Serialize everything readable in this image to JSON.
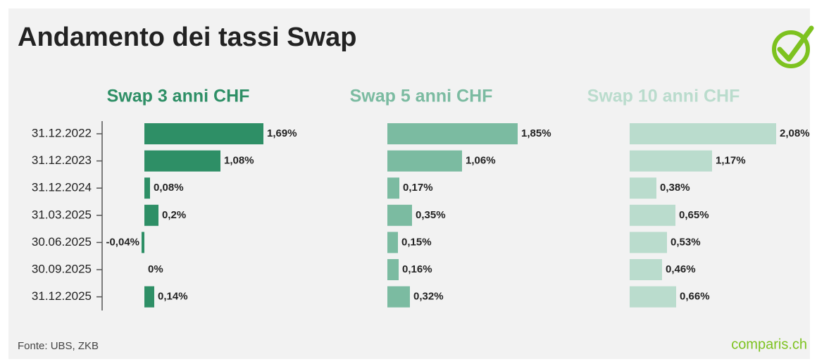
{
  "chart_data": {
    "type": "bar",
    "orientation": "horizontal",
    "title": "Andamento dei tassi Swap",
    "categories": [
      "31.12.2022",
      "31.12.2023",
      "31.12.2024",
      "31.03.2025",
      "30.06.2025",
      "30.09.2025",
      "31.12.2025"
    ],
    "series": [
      {
        "name": "Swap 3 anni CHF",
        "color": "#2e8f66",
        "values": [
          1.69,
          1.08,
          0.08,
          0.2,
          -0.04,
          0,
          0.14
        ],
        "value_labels": [
          "1,69%",
          "1,08%",
          "0,08%",
          "0,2%",
          "-0,04%",
          "0%",
          "0,14%"
        ]
      },
      {
        "name": "Swap 5 anni CHF",
        "color": "#7bbba1",
        "values": [
          1.85,
          1.06,
          0.17,
          0.35,
          0.15,
          0.16,
          0.32
        ],
        "value_labels": [
          "1,85%",
          "1,06%",
          "0,17%",
          "0,35%",
          "0,15%",
          "0,16%",
          "0,32%"
        ]
      },
      {
        "name": "Swap 10 anni CHF",
        "color": "#badccd",
        "values": [
          2.08,
          1.17,
          0.38,
          0.65,
          0.53,
          0.46,
          0.66
        ],
        "value_labels": [
          "2,08%",
          "1,17%",
          "0,38%",
          "0,65%",
          "0,53%",
          "0,46%",
          "0,66%"
        ]
      }
    ]
  },
  "footer": {
    "source": "Fonte: UBS, ZKB",
    "brand": "comparis.ch"
  }
}
